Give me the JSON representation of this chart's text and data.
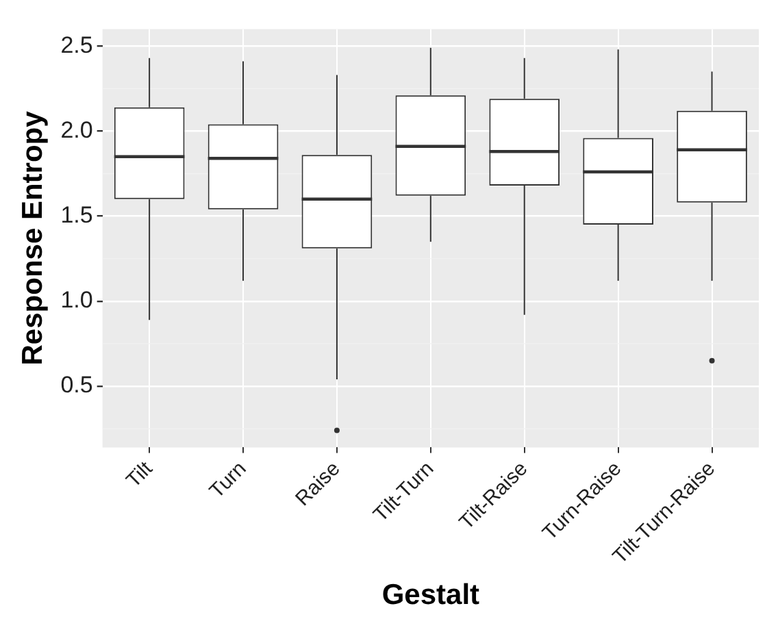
{
  "chart_data": {
    "type": "box",
    "xlabel": "Gestalt",
    "ylabel": "Response Entropy",
    "categories": [
      "Tilt",
      "Turn",
      "Raise",
      "Tilt-Turn",
      "Tilt-Raise",
      "Turn-Raise",
      "Tilt-Turn-Raise"
    ],
    "boxes": [
      {
        "low": 0.89,
        "q1": 1.6,
        "median": 1.85,
        "q3": 2.14,
        "high": 2.43
      },
      {
        "low": 1.12,
        "q1": 1.54,
        "median": 1.84,
        "q3": 2.04,
        "high": 2.41
      },
      {
        "low": 0.54,
        "q1": 1.31,
        "median": 1.6,
        "q3": 1.86,
        "high": 2.33,
        "outliers": [
          0.24
        ]
      },
      {
        "low": 1.35,
        "q1": 1.62,
        "median": 1.91,
        "q3": 2.21,
        "high": 2.49
      },
      {
        "low": 0.92,
        "q1": 1.68,
        "median": 1.88,
        "q3": 2.19,
        "high": 2.43
      },
      {
        "low": 1.12,
        "q1": 1.45,
        "median": 1.76,
        "q3": 1.96,
        "high": 2.48
      },
      {
        "low": 1.12,
        "q1": 1.58,
        "median": 1.89,
        "q3": 2.12,
        "high": 2.35,
        "outliers": [
          0.65
        ]
      }
    ],
    "ylim": [
      0.14,
      2.6
    ],
    "yticks": [
      0.5,
      {
        "value": 1,
        "label": "1.0"
      },
      1.5,
      {
        "value": 2,
        "label": "2.0"
      },
      2.5
    ],
    "grid": true,
    "legend": false
  }
}
